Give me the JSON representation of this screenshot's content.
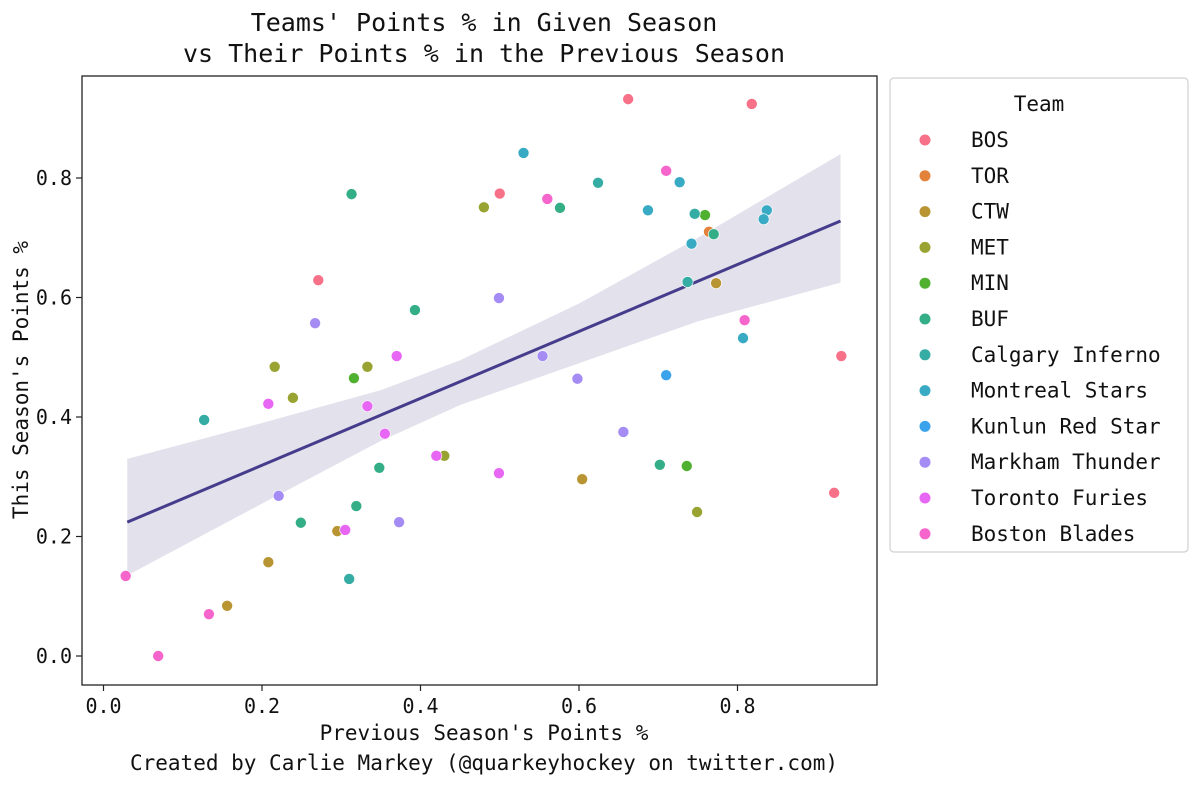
{
  "chart_data": {
    "type": "scatter",
    "title": "Teams' Points % in Given Season\nvs Their Points % in the Previous Season",
    "title_lines": [
      "Teams' Points % in Given Season",
      "vs Their Points % in the Previous Season"
    ],
    "xlabel": "Previous Season's Points %",
    "ylabel": "This Season's Points %",
    "caption": "Created by Carlie Markey (@quarkeyhockey on twitter.com)",
    "xlim": [
      -0.025,
      0.97
    ],
    "ylim": [
      -0.05,
      0.97
    ],
    "xticks": [
      0.0,
      0.2,
      0.4,
      0.6,
      0.8
    ],
    "xtick_labels": [
      "0.0",
      "0.2",
      "0.4",
      "0.6",
      "0.8"
    ],
    "yticks": [
      0.0,
      0.2,
      0.4,
      0.6,
      0.8
    ],
    "ytick_labels": [
      "0.0",
      "0.2",
      "0.4",
      "0.6",
      "0.8"
    ],
    "grid": false,
    "legend": {
      "title": "Team",
      "placement": "outside-right"
    },
    "series": [
      {
        "name": "BOS",
        "color": "#f77189",
        "points": [
          [
            0.662,
            0.932
          ],
          [
            0.818,
            0.924
          ],
          [
            0.5,
            0.774
          ],
          [
            0.271,
            0.629
          ],
          [
            0.931,
            0.502
          ],
          [
            0.922,
            0.273
          ]
        ]
      },
      {
        "name": "TOR",
        "color": "#e3823a",
        "points": [
          [
            0.764,
            0.71
          ]
        ]
      },
      {
        "name": "CTW",
        "color": "#b99432",
        "points": [
          [
            0.773,
            0.624
          ],
          [
            0.604,
            0.296
          ],
          [
            0.295,
            0.209
          ],
          [
            0.208,
            0.157
          ],
          [
            0.156,
            0.084
          ]
        ]
      },
      {
        "name": "MET",
        "color": "#98a331",
        "points": [
          [
            0.48,
            0.751
          ],
          [
            0.216,
            0.484
          ],
          [
            0.333,
            0.484
          ],
          [
            0.239,
            0.432
          ],
          [
            0.43,
            0.335
          ],
          [
            0.749,
            0.241
          ]
        ]
      },
      {
        "name": "MIN",
        "color": "#50b131",
        "points": [
          [
            0.759,
            0.738
          ],
          [
            0.316,
            0.465
          ],
          [
            0.736,
            0.318
          ]
        ]
      },
      {
        "name": "BUF",
        "color": "#34ae87",
        "points": [
          [
            0.313,
            0.773
          ],
          [
            0.576,
            0.75
          ],
          [
            0.393,
            0.579
          ],
          [
            0.77,
            0.706
          ],
          [
            0.348,
            0.315
          ],
          [
            0.319,
            0.251
          ],
          [
            0.249,
            0.223
          ],
          [
            0.702,
            0.32
          ]
        ]
      },
      {
        "name": "Calgary Inferno",
        "color": "#36ada4",
        "points": [
          [
            0.624,
            0.792
          ],
          [
            0.746,
            0.74
          ],
          [
            0.737,
            0.626
          ],
          [
            0.127,
            0.395
          ],
          [
            0.31,
            0.129
          ]
        ]
      },
      {
        "name": "Montreal Stars",
        "color": "#38aac3",
        "points": [
          [
            0.53,
            0.842
          ],
          [
            0.727,
            0.793
          ],
          [
            0.687,
            0.746
          ],
          [
            0.742,
            0.69
          ],
          [
            0.837,
            0.746
          ],
          [
            0.833,
            0.731
          ],
          [
            0.807,
            0.532
          ]
        ]
      },
      {
        "name": "Kunlun Red Star",
        "color": "#3ba3ec",
        "points": [
          [
            0.71,
            0.47
          ]
        ]
      },
      {
        "name": "Markham Thunder",
        "color": "#a48cf4",
        "points": [
          [
            0.499,
            0.599
          ],
          [
            0.267,
            0.557
          ],
          [
            0.554,
            0.502
          ],
          [
            0.598,
            0.464
          ],
          [
            0.656,
            0.375
          ],
          [
            0.221,
            0.268
          ],
          [
            0.373,
            0.224
          ]
        ]
      },
      {
        "name": "Toronto Furies",
        "color": "#e866f4",
        "points": [
          [
            0.37,
            0.502
          ],
          [
            0.208,
            0.422
          ],
          [
            0.333,
            0.418
          ],
          [
            0.355,
            0.372
          ],
          [
            0.42,
            0.335
          ],
          [
            0.499,
            0.306
          ],
          [
            0.305,
            0.211
          ]
        ]
      },
      {
        "name": "Boston Blades",
        "color": "#f565cc",
        "points": [
          [
            0.71,
            0.812
          ],
          [
            0.56,
            0.765
          ],
          [
            0.809,
            0.562
          ],
          [
            0.028,
            0.134
          ],
          [
            0.133,
            0.07
          ],
          [
            0.069,
            0.0
          ]
        ]
      }
    ],
    "regression": {
      "color": "#463c8c",
      "band_color": "#e3e1ec",
      "line": [
        [
          0.03,
          0.224
        ],
        [
          0.93,
          0.728
        ]
      ],
      "ci_x": [
        0.03,
        0.2,
        0.35,
        0.45,
        0.6,
        0.75,
        0.93
      ],
      "ci_upper": [
        0.33,
        0.39,
        0.445,
        0.495,
        0.59,
        0.7,
        0.84
      ],
      "ci_lower": [
        0.135,
        0.255,
        0.36,
        0.42,
        0.49,
        0.56,
        0.625
      ]
    }
  }
}
